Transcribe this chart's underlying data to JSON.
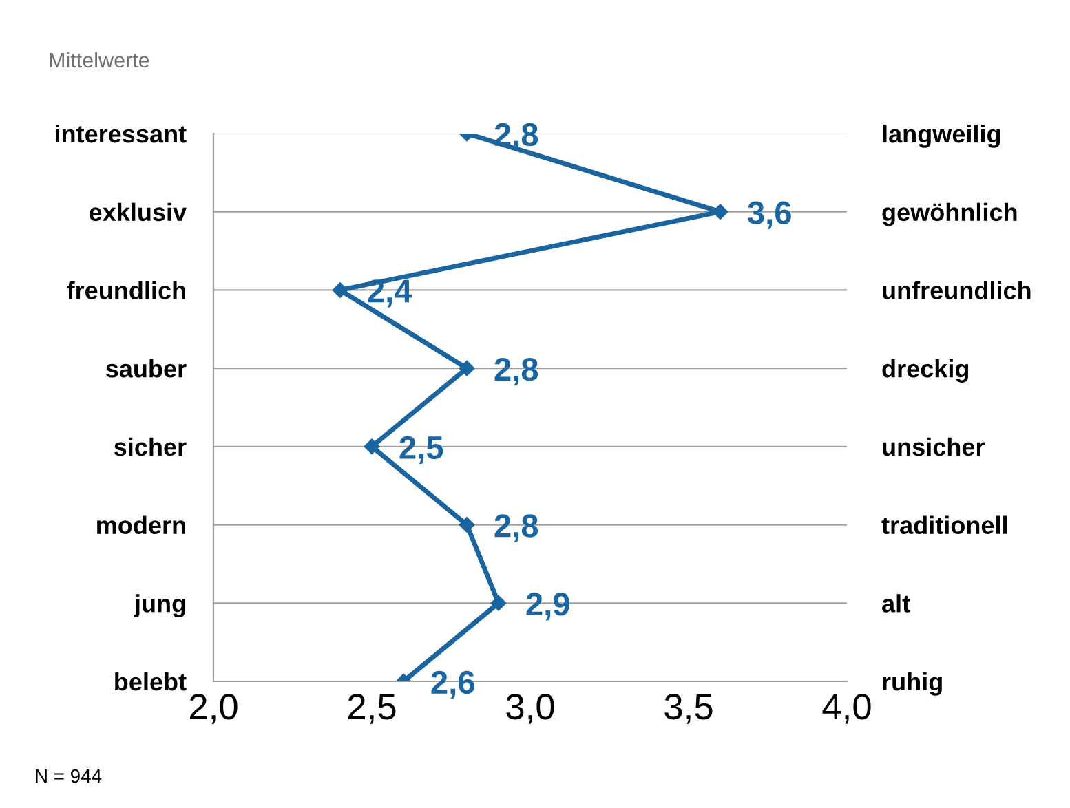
{
  "chart_data": {
    "type": "line",
    "orientation": "horizontal",
    "title": "Mittelwerte",
    "categories": [
      "interessant",
      "exklusiv",
      "freundlich",
      "sauber",
      "sicher",
      "modern",
      "jung",
      "belebt"
    ],
    "y2_categories": [
      "langweilig",
      "gewöhnlich",
      "unfreundlich",
      "dreckig",
      "unsicher",
      "traditionell",
      "alt",
      "ruhig"
    ],
    "series": [
      {
        "color": "#1a64a0",
        "values": [
          2.8,
          3.6,
          2.4,
          2.8,
          2.5,
          2.8,
          2.9,
          2.6
        ],
        "value_labels": [
          "2,8",
          "3,6",
          "2,4",
          "2,8",
          "2,5",
          "2,8",
          "2,9",
          "2,6"
        ]
      }
    ],
    "xlim": [
      2,
      4
    ],
    "xticks": [
      {
        "value": 2,
        "label": "2,0"
      },
      {
        "value": 2.5,
        "label": "2,5"
      },
      {
        "value": 3,
        "label": "3,0"
      },
      {
        "value": 3.5,
        "label": "3,5"
      },
      {
        "value": 4,
        "label": "4,0"
      }
    ],
    "grid": "y",
    "marker": "diamond",
    "line_style": "solid",
    "annotations": [
      "N = 944"
    ]
  }
}
